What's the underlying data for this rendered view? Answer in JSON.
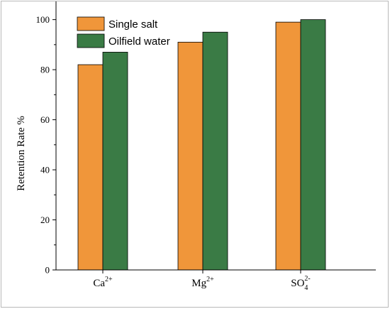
{
  "chart_data": {
    "type": "bar",
    "categories": [
      {
        "base": "Ca",
        "sup": "2+",
        "sub": ""
      },
      {
        "base": "Mg",
        "sup": "2+",
        "sub": ""
      },
      {
        "base": "SO",
        "sup": "2-",
        "sub": "4"
      }
    ],
    "series": [
      {
        "name": "Single salt",
        "values": [
          82,
          91,
          99
        ],
        "color": "#f0963a"
      },
      {
        "name": "Oilfield water",
        "values": [
          87,
          95,
          100
        ],
        "color": "#3a7b45"
      }
    ],
    "title": "",
    "xlabel": "",
    "ylabel": "Retention Rate %",
    "ylim": [
      0,
      105
    ],
    "y_ticks": [
      0,
      20,
      40,
      60,
      80,
      100
    ],
    "grid": false,
    "legend_position": "top-left",
    "bar_outline_color": "#000000"
  }
}
